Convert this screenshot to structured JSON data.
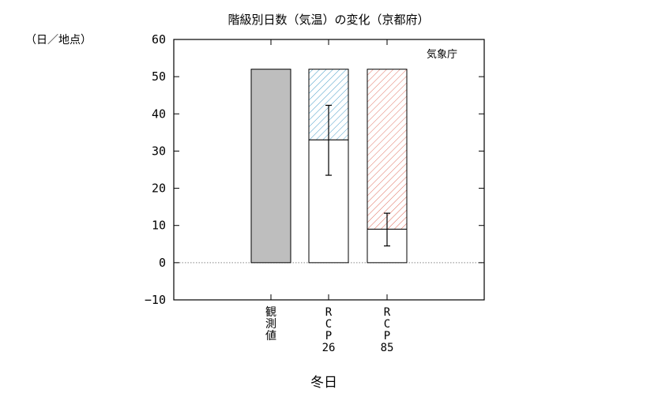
{
  "chart_data": {
    "type": "bar",
    "title": "階級別日数（気温）の変化（京都府）",
    "y_unit": "（日／地点）",
    "source_note": "気象庁",
    "xlabel": "冬日",
    "ylim": [
      -10,
      60
    ],
    "yticks": [
      -10,
      0,
      10,
      20,
      30,
      40,
      50,
      60
    ],
    "zero_line": "dotted",
    "categories": [
      [
        "観",
        "測",
        "値"
      ],
      [
        "R",
        "C",
        "P",
        "26"
      ],
      [
        "R",
        "C",
        "P",
        "85"
      ]
    ],
    "bars": [
      {
        "category": "観測値",
        "current": 52,
        "future": null,
        "error_low": null,
        "error_high": null,
        "fill": "#bebebe",
        "hatch": null
      },
      {
        "category": "RCP26",
        "current": 52,
        "future": 33,
        "error_low": 23.5,
        "error_high": 42.3,
        "fill": "#ffffff",
        "hatch": "#4a9ec8"
      },
      {
        "category": "RCP85",
        "current": 52,
        "future": 9,
        "error_low": 4.5,
        "error_high": 13.3,
        "fill": "#ffffff",
        "hatch": "#e07060"
      }
    ]
  }
}
